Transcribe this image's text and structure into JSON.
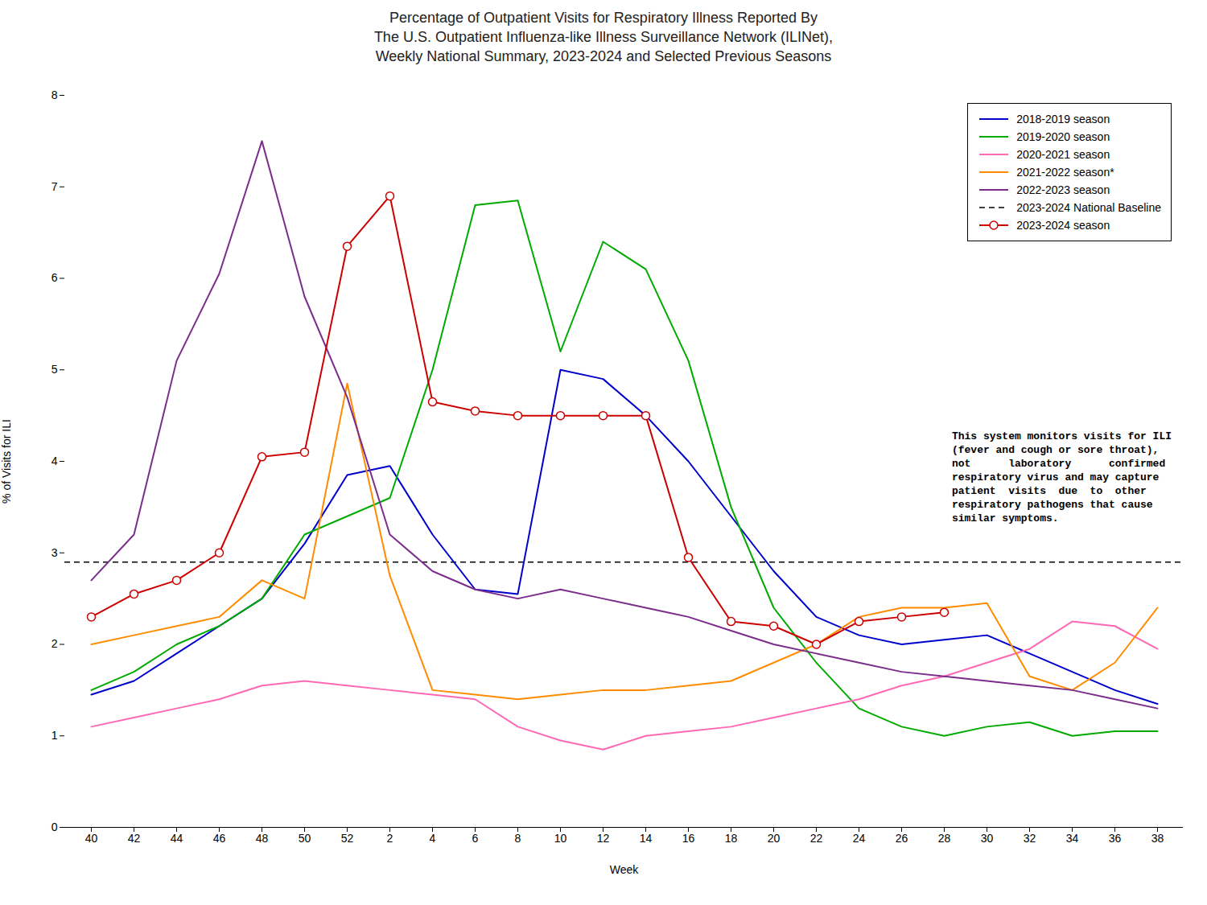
{
  "chart_data": {
    "type": "line",
    "title": "Percentage of Outpatient Visits for Respiratory Illness Reported By\nThe U.S. Outpatient Influenza-like Illness Surveillance Network (ILINet),\nWeekly National Summary, 2023-2024 and Selected Previous Seasons",
    "xlabel": "Week",
    "ylabel": "% of Visits for ILI",
    "categories": [
      "40",
      "42",
      "44",
      "46",
      "48",
      "50",
      "52",
      "2",
      "4",
      "6",
      "8",
      "10",
      "12",
      "14",
      "16",
      "18",
      "20",
      "22",
      "24",
      "26",
      "28",
      "30",
      "32",
      "34",
      "36",
      "38"
    ],
    "ylim": [
      0,
      8
    ],
    "yticks": [
      0,
      1,
      2,
      3,
      4,
      5,
      6,
      7,
      8
    ],
    "grid": false,
    "legend": "upper right",
    "annotations": [
      "This system monitors visits for ILI\n(fever and cough or sore throat),\nnot      laboratory      confirmed\nrespiratory virus and may capture\npatient  visits  due  to  other\nrespiratory pathogens that cause\nsimilar symptoms."
    ],
    "series": [
      {
        "name": "2018-2019 season",
        "color": "#0000CC",
        "line_style": "solid",
        "values": [
          1.45,
          1.6,
          1.9,
          2.2,
          2.5,
          3.1,
          3.85,
          3.95,
          3.2,
          2.6,
          2.55,
          5.0,
          4.9,
          4.5,
          4.0,
          3.4,
          2.8,
          2.3,
          2.1,
          2.0,
          2.05,
          2.1,
          1.9,
          1.7,
          1.5,
          1.35
        ]
      },
      {
        "name": "2019-2020 season",
        "color": "#00AA00",
        "line_style": "solid",
        "values": [
          1.5,
          1.7,
          2.0,
          2.2,
          2.5,
          3.2,
          3.4,
          3.6,
          5.0,
          6.8,
          6.85,
          5.2,
          6.4,
          6.1,
          5.1,
          3.5,
          2.4,
          1.8,
          1.3,
          1.1,
          1.0,
          1.1,
          1.15,
          1.0,
          1.05,
          1.05
        ]
      },
      {
        "name": "2020-2021 season",
        "color": "#FF69B4",
        "line_style": "solid",
        "values": [
          1.1,
          1.2,
          1.3,
          1.4,
          1.55,
          1.6,
          1.55,
          1.5,
          1.45,
          1.4,
          1.1,
          0.95,
          0.85,
          1.0,
          1.05,
          1.1,
          1.2,
          1.3,
          1.4,
          1.55,
          1.65,
          1.8,
          1.95,
          2.25,
          2.2,
          1.95
        ]
      },
      {
        "name": "2021-2022 season*",
        "color": "#FF8C00",
        "line_style": "solid",
        "values": [
          2.0,
          2.1,
          2.2,
          2.3,
          2.7,
          2.5,
          4.85,
          2.75,
          1.5,
          1.45,
          1.4,
          1.45,
          1.5,
          1.5,
          1.55,
          1.6,
          1.8,
          2.0,
          2.3,
          2.4,
          2.4,
          2.45,
          1.65,
          1.5,
          1.8,
          2.4
        ]
      },
      {
        "name": "2022-2023 season",
        "color": "#7B2D8B",
        "line_style": "solid",
        "values": [
          2.7,
          3.2,
          5.1,
          6.05,
          7.5,
          5.8,
          4.7,
          3.2,
          2.8,
          2.6,
          2.5,
          2.6,
          2.5,
          2.4,
          2.3,
          2.15,
          2.0,
          1.9,
          1.8,
          1.7,
          1.65,
          1.6,
          1.55,
          1.5,
          1.4,
          1.3
        ]
      },
      {
        "name": "2023-2024 National Baseline",
        "type": "hline",
        "color": "#000000",
        "line_style": "dashed",
        "value": 2.9
      },
      {
        "name": "2023-2024 season",
        "color": "#CC0000",
        "line_style": "solid",
        "marker": "circle",
        "values": [
          2.3,
          2.55,
          2.7,
          3.0,
          4.05,
          4.1,
          6.35,
          6.9,
          4.65,
          4.55,
          4.5,
          4.5,
          4.5,
          4.5,
          2.95,
          2.25,
          2.2,
          2.0,
          2.25,
          2.3,
          2.35,
          null,
          null,
          null,
          null,
          null
        ]
      }
    ]
  }
}
